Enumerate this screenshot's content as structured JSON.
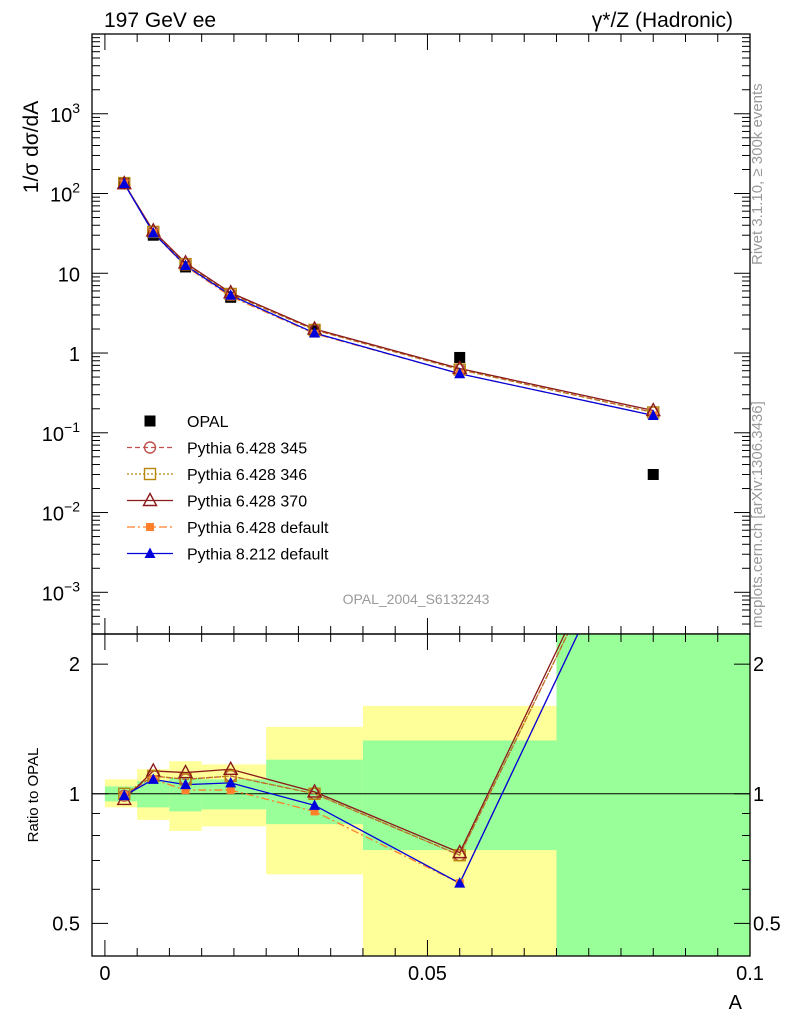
{
  "header": {
    "left_label": "197 GeV ee",
    "right_label": "γ*/Z (Hadronic)"
  },
  "side_text": {
    "rivet": "Rivet 3.1.10, ≥ 300k events",
    "mcplots": "mcplots.cern.ch [arXiv:1306.3436]"
  },
  "analysis_id": "OPAL_2004_S6132243",
  "chart_data": [
    {
      "type": "line",
      "panel": "main",
      "ylabel": "1/σ dσ/dA",
      "xlabel": "A",
      "yscale": "log",
      "xlim": [
        -0.002,
        0.1
      ],
      "ylim": [
        0.0003,
        10000
      ],
      "yticks": [
        {
          "value": 0.001,
          "base": "10",
          "exp": "−3"
        },
        {
          "value": 0.01,
          "base": "10",
          "exp": "−2"
        },
        {
          "value": 0.1,
          "base": "10",
          "exp": "−1"
        },
        {
          "value": 1,
          "base": "1",
          "exp": ""
        },
        {
          "value": 10,
          "base": "10",
          "exp": ""
        },
        {
          "value": 100,
          "base": "10",
          "exp": "2"
        },
        {
          "value": 1000,
          "base": "10",
          "exp": "3"
        }
      ],
      "legend_position": "lower-left",
      "x": [
        0.003,
        0.0075,
        0.0125,
        0.0195,
        0.0325,
        0.055,
        0.085
      ],
      "series": [
        {
          "name": "OPAL",
          "color": "#000000",
          "marker": "square-filled",
          "line": "none",
          "values": [
            135,
            30,
            12,
            5,
            1.9,
            0.88,
            0.03
          ]
        },
        {
          "name": "Pythia 6.428 345",
          "color": "#c0504d",
          "marker": "circle-open",
          "line": "dashed",
          "values": [
            134,
            33,
            13,
            5.5,
            1.95,
            0.62,
            0.18
          ]
        },
        {
          "name": "Pythia 6.428 346",
          "color": "#b8860b",
          "marker": "square-open",
          "line": "dotted",
          "values": [
            135,
            33,
            13,
            5.5,
            1.95,
            0.62,
            0.18
          ]
        },
        {
          "name": "Pythia 6.428 370",
          "color": "#8b1a1a",
          "marker": "triangle-open",
          "line": "solid",
          "values": [
            133,
            34,
            13.5,
            5.7,
            2.0,
            0.64,
            0.19
          ]
        },
        {
          "name": "Pythia 6.428 default",
          "color": "#ff7f2a",
          "marker": "square-filled-small",
          "line": "dashdot",
          "values": [
            133,
            32,
            12.2,
            5.1,
            1.75,
            0.55,
            0.165
          ]
        },
        {
          "name": "Pythia 8.212 default",
          "color": "#0000dd",
          "marker": "triangle-filled",
          "line": "solid",
          "values": [
            133,
            32,
            12.5,
            5.3,
            1.78,
            0.55,
            0.165
          ]
        }
      ]
    },
    {
      "type": "line",
      "panel": "ratio",
      "ylabel": "Ratio to OPAL",
      "xlabel": "A",
      "yscale": "log",
      "xlim": [
        -0.002,
        0.1
      ],
      "ylim": [
        0.42,
        2.35
      ],
      "yticks": [
        {
          "value": 0.5,
          "label": "0.5"
        },
        {
          "value": 1,
          "label": "1"
        },
        {
          "value": 2,
          "label": "2"
        }
      ],
      "xticks": [
        {
          "value": 0,
          "label": "0"
        },
        {
          "value": 0.05,
          "label": "0.05"
        },
        {
          "value": 0.1,
          "label": "0.1"
        }
      ],
      "bands": [
        {
          "x0": 0.0,
          "x1": 0.005,
          "green": [
            0.96,
            1.04
          ],
          "yellow": [
            0.93,
            1.08
          ]
        },
        {
          "x0": 0.005,
          "x1": 0.01,
          "green": [
            0.93,
            1.07
          ],
          "yellow": [
            0.87,
            1.14
          ]
        },
        {
          "x0": 0.01,
          "x1": 0.015,
          "green": [
            0.91,
            1.09
          ],
          "yellow": [
            0.82,
            1.19
          ]
        },
        {
          "x0": 0.015,
          "x1": 0.025,
          "green": [
            0.92,
            1.08
          ],
          "yellow": [
            0.84,
            1.17
          ]
        },
        {
          "x0": 0.025,
          "x1": 0.04,
          "green": [
            0.85,
            1.2
          ],
          "yellow": [
            0.65,
            1.43
          ]
        },
        {
          "x0": 0.04,
          "x1": 0.07,
          "green": [
            0.74,
            1.33
          ],
          "yellow": [
            0.42,
            1.6
          ]
        },
        {
          "x0": 0.07,
          "x1": 0.1,
          "green": [
            0.42,
            2.35
          ],
          "yellow": [
            0.42,
            2.35
          ]
        }
      ],
      "x": [
        0.003,
        0.0075,
        0.0125,
        0.0195,
        0.0325,
        0.055,
        0.085
      ],
      "series": [
        {
          "name": "Pythia 6.428 345",
          "values": [
            0.99,
            1.1,
            1.08,
            1.1,
            1.0,
            0.72,
            6.0
          ]
        },
        {
          "name": "Pythia 6.428 346",
          "values": [
            1.0,
            1.1,
            1.08,
            1.1,
            1.0,
            0.72,
            6.0
          ]
        },
        {
          "name": "Pythia 6.428 370",
          "values": [
            0.97,
            1.13,
            1.12,
            1.14,
            1.01,
            0.73,
            6.3
          ]
        },
        {
          "name": "Pythia 6.428 default",
          "values": [
            0.99,
            1.08,
            1.02,
            1.02,
            0.91,
            0.62,
            5.5
          ]
        },
        {
          "name": "Pythia 8.212 default",
          "values": [
            0.99,
            1.08,
            1.05,
            1.06,
            0.94,
            0.62,
            5.5
          ]
        }
      ]
    }
  ]
}
